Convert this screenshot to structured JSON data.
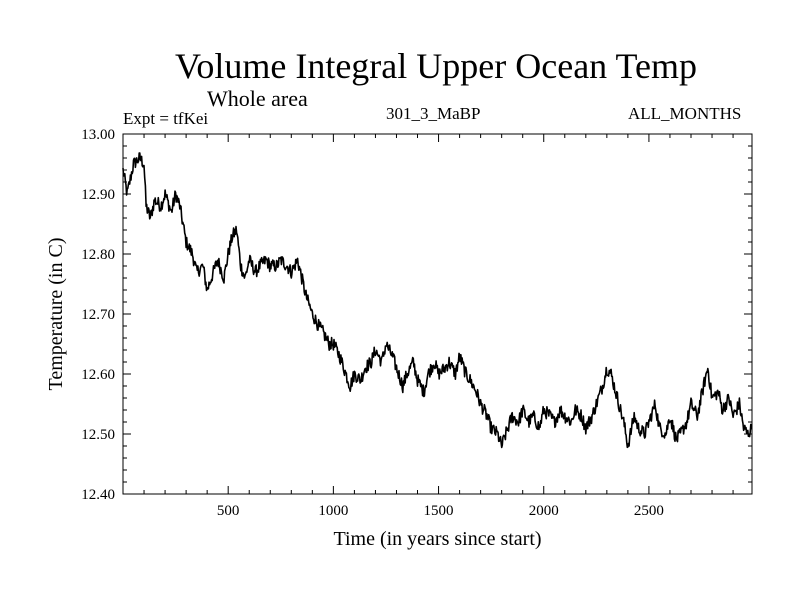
{
  "header": {
    "title": "Volume Integral Upper Ocean Temp",
    "subtitle": "Whole area",
    "experiment": "Expt = tfKei",
    "run_id": "301_3_MaBP",
    "months": "ALL_MONTHS"
  },
  "chart_data": {
    "type": "line",
    "title": "Volume Integral Upper Ocean Temp",
    "subtitle": "Whole area",
    "xlabel": "Time (in years since start)",
    "ylabel": "Temperature (in C)",
    "xlim": [
      0,
      2990
    ],
    "ylim": [
      12.4,
      13.0
    ],
    "xticks": [
      500,
      1000,
      1500,
      2000,
      2500
    ],
    "xtick_labels": [
      "500",
      "1000",
      "1500",
      "2000",
      "2500"
    ],
    "yticks": [
      12.4,
      12.5,
      12.6,
      12.7,
      12.8,
      12.9,
      13.0
    ],
    "ytick_labels": [
      "12.40",
      "12.50",
      "12.60",
      "12.70",
      "12.80",
      "12.90",
      "13.00"
    ],
    "grid": false,
    "series": [
      {
        "color": "#000000",
        "x": [
          0,
          20,
          50,
          80,
          100,
          110,
          130,
          150,
          180,
          200,
          230,
          250,
          270,
          290,
          300,
          330,
          350,
          380,
          400,
          430,
          450,
          480,
          500,
          520,
          540,
          560,
          580,
          600,
          630,
          650,
          680,
          700,
          730,
          750,
          780,
          800,
          830,
          850,
          870,
          900,
          930,
          950,
          980,
          1000,
          1030,
          1050,
          1080,
          1100,
          1130,
          1150,
          1180,
          1200,
          1230,
          1250,
          1280,
          1300,
          1330,
          1350,
          1380,
          1400,
          1430,
          1450,
          1480,
          1500,
          1530,
          1550,
          1580,
          1600,
          1630,
          1650,
          1680,
          1700,
          1730,
          1750,
          1780,
          1800,
          1830,
          1850,
          1880,
          1900,
          1930,
          1950,
          1980,
          2000,
          2030,
          2050,
          2080,
          2100,
          2130,
          2150,
          2180,
          2200,
          2230,
          2250,
          2280,
          2300,
          2320,
          2350,
          2380,
          2400,
          2430,
          2450,
          2480,
          2500,
          2530,
          2550,
          2580,
          2600,
          2630,
          2650,
          2680,
          2700,
          2730,
          2760,
          2780,
          2800,
          2830,
          2850,
          2880,
          2900,
          2930,
          2950,
          2970,
          2990
        ],
        "y": [
          12.94,
          12.9,
          12.95,
          12.96,
          12.95,
          12.88,
          12.86,
          12.89,
          12.88,
          12.9,
          12.87,
          12.9,
          12.88,
          12.84,
          12.82,
          12.8,
          12.77,
          12.78,
          12.74,
          12.77,
          12.79,
          12.76,
          12.8,
          12.83,
          12.84,
          12.78,
          12.76,
          12.79,
          12.77,
          12.78,
          12.79,
          12.78,
          12.78,
          12.79,
          12.78,
          12.77,
          12.79,
          12.76,
          12.73,
          12.7,
          12.68,
          12.67,
          12.65,
          12.65,
          12.63,
          12.61,
          12.58,
          12.6,
          12.59,
          12.61,
          12.62,
          12.64,
          12.62,
          12.65,
          12.63,
          12.61,
          12.58,
          12.6,
          12.62,
          12.59,
          12.57,
          12.6,
          12.62,
          12.6,
          12.61,
          12.62,
          12.6,
          12.63,
          12.6,
          12.59,
          12.57,
          12.55,
          12.53,
          12.51,
          12.5,
          12.48,
          12.51,
          12.53,
          12.52,
          12.54,
          12.52,
          12.53,
          12.51,
          12.54,
          12.53,
          12.52,
          12.54,
          12.53,
          12.52,
          12.54,
          12.53,
          12.51,
          12.53,
          12.55,
          12.58,
          12.61,
          12.6,
          12.56,
          12.52,
          12.48,
          12.53,
          12.51,
          12.5,
          12.52,
          12.55,
          12.51,
          12.5,
          12.53,
          12.49,
          12.5,
          12.52,
          12.55,
          12.53,
          12.58,
          12.61,
          12.56,
          12.57,
          12.54,
          12.56,
          12.53,
          12.55,
          12.51,
          12.5,
          12.51
        ]
      }
    ]
  }
}
